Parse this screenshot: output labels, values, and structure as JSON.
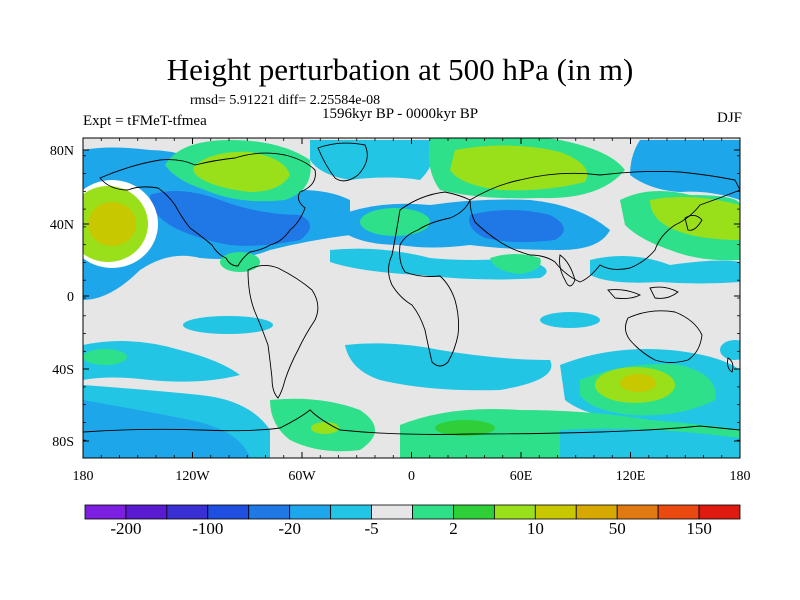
{
  "title": "Height perturbation at 500 hPa (in m)",
  "stats": "rmsd= 5.91221 diff= 2.25584e-08",
  "period": "1596kyr BP - 0000kyr BP",
  "experiment": "Expt = tFMeT-tfmea",
  "season": "DJF",
  "lat_ticks": [
    "80N",
    "40N",
    "0",
    "40S",
    "80S"
  ],
  "lon_ticks": [
    "180",
    "120W",
    "60W",
    "0",
    "60E",
    "120E",
    "180"
  ],
  "colorbar": {
    "colors": [
      "#7d1fe0",
      "#5a1ad0",
      "#3a2fd4",
      "#1f4fe0",
      "#1f78e6",
      "#1ea6ea",
      "#22c6e4",
      "#e6e6e6",
      "#2fe08a",
      "#2fcf3a",
      "#9ae01a",
      "#c8c800",
      "#d6a800",
      "#e07a10",
      "#ea4a10",
      "#e01a10"
    ],
    "labels": [
      "-200",
      "-100",
      "-20",
      "-5",
      "2",
      "10",
      "50",
      "150"
    ]
  },
  "colors": {
    "neutral": "#e6e6e6",
    "light_blue": "#22c6e4",
    "blue": "#1ea6ea",
    "mid_blue": "#1f78e6",
    "green": "#2fe08a",
    "bright_green": "#2fcf3a",
    "yellow_green": "#9ae01a",
    "yellow": "#c8c800",
    "white": "#ffffff"
  }
}
